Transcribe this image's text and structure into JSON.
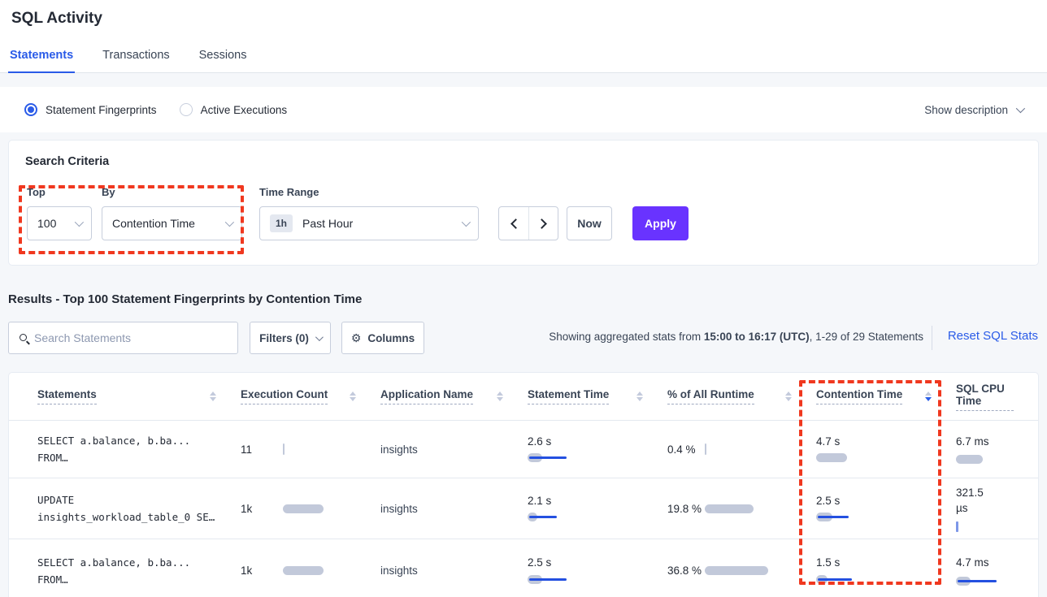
{
  "page": {
    "title": "SQL Activity"
  },
  "tabs": [
    {
      "label": "Statements",
      "active": true
    },
    {
      "label": "Transactions",
      "active": false
    },
    {
      "label": "Sessions",
      "active": false
    }
  ],
  "view_toggle": {
    "options": [
      {
        "label": "Statement Fingerprints",
        "selected": true
      },
      {
        "label": "Active Executions",
        "selected": false
      }
    ],
    "show_description_label": "Show description"
  },
  "search_criteria": {
    "heading": "Search Criteria",
    "top": {
      "label": "Top",
      "value": "100"
    },
    "by": {
      "label": "By",
      "value": "Contention Time"
    },
    "time_range": {
      "label": "Time Range",
      "badge": "1h",
      "value": "Past Hour"
    },
    "now_label": "Now",
    "apply_label": "Apply"
  },
  "results": {
    "heading": "Results - Top 100 Statement Fingerprints by Contention Time",
    "search_placeholder": "Search Statements",
    "filters_label": "Filters (0)",
    "columns_label": "Columns",
    "stats_prefix": "Showing aggregated stats from ",
    "stats_range": "15:00 to 16:17 (UTC)",
    "stats_suffix": ", 1-29 of 29 Statements",
    "reset_label": "Reset SQL Stats"
  },
  "table": {
    "headers": [
      {
        "label": "Statements"
      },
      {
        "label": "Execution Count"
      },
      {
        "label": "Application Name"
      },
      {
        "label": "Statement Time"
      },
      {
        "label": "% of All Runtime"
      },
      {
        "label": "Contention Time",
        "sort": "desc"
      },
      {
        "label": "SQL CPU Time"
      }
    ],
    "sorted_by": "Contention Time",
    "sort_direction": "desc",
    "rows": [
      {
        "statement_line1": "SELECT a.balance, b.ba...",
        "statement_line2": "FROM…",
        "execution_count": "11",
        "application_name": "insights",
        "statement_time": "2.6 s",
        "pct_runtime": "0.4 %",
        "contention_time": "4.7 s",
        "sql_cpu_time": "6.7 ms",
        "bars": {
          "exec": {
            "gray": 0,
            "blue": 0,
            "tick": "gray"
          },
          "stmt": {
            "gray": 18,
            "blue": 46,
            "tick": null
          },
          "pct": {
            "gray": 0,
            "blue": 0,
            "tick": "gray"
          },
          "cont": {
            "gray": 38,
            "blue": 0,
            "tick": null
          },
          "cpu": {
            "gray": 33,
            "blue": 0,
            "tick": null
          }
        }
      },
      {
        "statement_line1": "UPDATE",
        "statement_line2": "insights_workload_table_0 SE…",
        "execution_count": "1k",
        "application_name": "insights",
        "statement_time": "2.1 s",
        "pct_runtime": "19.8 %",
        "contention_time": "2.5 s",
        "sql_cpu_time": "321.5 µs",
        "bars": {
          "exec": {
            "gray": 50,
            "blue": 0,
            "tick": null
          },
          "stmt": {
            "gray": 12,
            "blue": 34,
            "tick": null
          },
          "pct": {
            "gray": 60,
            "blue": 0,
            "tick": null
          },
          "cont": {
            "gray": 20,
            "blue": 38,
            "tick": null
          },
          "cpu": {
            "gray": 0,
            "blue": 0,
            "tick": "blue"
          }
        }
      },
      {
        "statement_line1": "SELECT a.balance, b.ba...",
        "statement_line2": "FROM…",
        "execution_count": "1k",
        "application_name": "insights",
        "statement_time": "2.5 s",
        "pct_runtime": "36.8 %",
        "contention_time": "1.5 s",
        "sql_cpu_time": "4.7 ms",
        "bars": {
          "exec": {
            "gray": 50,
            "blue": 0,
            "tick": null
          },
          "stmt": {
            "gray": 18,
            "blue": 46,
            "tick": null
          },
          "pct": {
            "gray": 78,
            "blue": 0,
            "tick": null
          },
          "cont": {
            "gray": 14,
            "blue": 42,
            "tick": null
          },
          "cpu": {
            "gray": 18,
            "blue": 48,
            "tick": null
          }
        }
      }
    ]
  },
  "colors": {
    "accent_blue": "#2a5be8",
    "apply_purple": "#6933ff",
    "annotation_red": "#f0381f",
    "bar_gray": "#c2c9da",
    "bar_blue": "#2450e0"
  },
  "icons": {
    "search": "magnifier-glyph",
    "columns": "⚙",
    "dropdown": "chevron-down",
    "prev": "chevron-left",
    "next": "chevron-right",
    "sort": "caret-up-down"
  }
}
